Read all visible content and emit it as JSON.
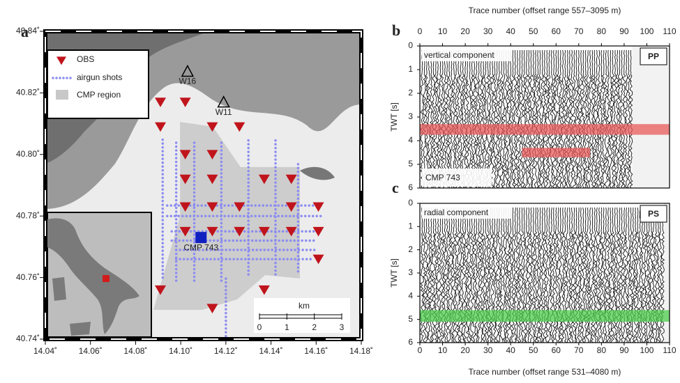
{
  "chart_data": [
    {
      "type": "map",
      "panel_label": "a",
      "xlim": [
        14.04,
        14.18
      ],
      "ylim": [
        40.74,
        40.84
      ],
      "xticks": [
        {
          "value": 14.04,
          "label": "14.04˚"
        },
        {
          "value": 14.06,
          "label": "14.06˚"
        },
        {
          "value": 14.08,
          "label": "14.08˚"
        },
        {
          "value": 14.1,
          "label": "14.10˚"
        },
        {
          "value": 14.12,
          "label": "14.12˚"
        },
        {
          "value": 14.14,
          "label": "14.14˚"
        },
        {
          "value": 14.16,
          "label": "14.16˚"
        },
        {
          "value": 14.18,
          "label": "14.18˚"
        }
      ],
      "yticks": [
        {
          "value": 40.74,
          "label": "40.74˚"
        },
        {
          "value": 40.76,
          "label": "40.76˚"
        },
        {
          "value": 40.78,
          "label": "40.78˚"
        },
        {
          "value": 40.8,
          "label": "40.80˚"
        },
        {
          "value": 40.82,
          "label": "40.82˚"
        },
        {
          "value": 40.84,
          "label": "40.84˚"
        }
      ],
      "cmp_region": {
        "name": "CMP region",
        "color": "#c8c8c8",
        "lon": [
          14.0997,
          14.1142,
          14.1265,
          14.1528,
          14.1528,
          14.1374,
          14.125,
          14.1095,
          14.0879,
          14.0997
        ],
        "lat": [
          40.8106,
          40.809,
          40.7959,
          40.7959,
          40.7597,
          40.7608,
          40.7529,
          40.7495,
          40.7495,
          40.78
        ]
      },
      "shots": {
        "name": "airgun shots",
        "color": "#8c8cf0",
        "tracks": [
          {
            "lon": [
              14.094,
              14.162
            ],
            "lat": [
              40.7834,
              40.7834
            ]
          },
          {
            "lon": [
              14.094,
              14.162
            ],
            "lat": [
              40.78,
              40.78
            ]
          },
          {
            "lon": [
              14.096,
              14.162
            ],
            "lat": [
              40.775,
              40.775
            ]
          },
          {
            "lon": [
              14.096,
              14.16
            ],
            "lat": [
              40.772,
              40.772
            ]
          },
          {
            "lon": [
              14.098,
              14.16
            ],
            "lat": [
              40.769,
              40.769
            ]
          },
          {
            "lon": [
              14.098,
              14.158
            ],
            "lat": [
              40.766,
              40.766
            ]
          },
          {
            "lon": [
              14.092,
              14.092
            ],
            "lat": [
              40.76,
              40.805
            ]
          },
          {
            "lon": [
              14.098,
              14.098
            ],
            "lat": [
              40.759,
              40.805
            ]
          },
          {
            "lon": [
              14.106,
              14.106
            ],
            "lat": [
              40.759,
              40.805
            ]
          },
          {
            "lon": [
              14.118,
              14.118
            ],
            "lat": [
              40.759,
              40.805
            ]
          },
          {
            "lon": [
              14.13,
              14.13
            ],
            "lat": [
              40.761,
              40.805
            ]
          },
          {
            "lon": [
              14.142,
              14.142
            ],
            "lat": [
              40.761,
              40.805
            ]
          },
          {
            "lon": [
              14.152,
              14.152
            ],
            "lat": [
              40.762,
              40.798
            ]
          },
          {
            "lon": [
              14.12,
              14.12
            ],
            "lat": [
              40.741,
              40.76
            ]
          }
        ]
      },
      "obs": {
        "name": "OBS",
        "color": "#c0141c",
        "lon": [
          14.091,
          14.102,
          14.091,
          14.114,
          14.126,
          14.102,
          14.114,
          14.102,
          14.114,
          14.137,
          14.149,
          14.102,
          14.114,
          14.126,
          14.149,
          14.161,
          14.102,
          14.114,
          14.126,
          14.137,
          14.149,
          14.161,
          14.161,
          14.091,
          14.114,
          14.137
        ],
        "lat": [
          40.817,
          40.817,
          40.809,
          40.809,
          40.809,
          40.8,
          40.8,
          40.792,
          40.792,
          40.792,
          40.792,
          40.783,
          40.783,
          40.783,
          40.783,
          40.783,
          40.775,
          40.775,
          40.775,
          40.775,
          40.775,
          40.775,
          40.766,
          40.756,
          40.75,
          40.756
        ]
      },
      "stations": [
        {
          "label": "W16",
          "lon": 14.103,
          "lat": 40.827
        },
        {
          "label": "W11",
          "lon": 14.119,
          "lat": 40.817
        }
      ],
      "cmp": {
        "label": "CMP 743",
        "lon": 14.109,
        "lat": 40.773,
        "color": "#1020c0"
      },
      "scalebar": {
        "label": "km",
        "ticks": [
          0,
          1,
          2,
          3
        ]
      }
    },
    {
      "type": "seismic",
      "panel_label": "b",
      "xlabel": "Trace number (offset range 557–3095 m)",
      "ylabel": "TWT [s]",
      "component": "vertical component",
      "wave": "PP",
      "annotation": "CMP 743",
      "xlim": [
        0,
        110
      ],
      "ylim": [
        6,
        0
      ],
      "xticks": [
        0,
        10,
        20,
        30,
        40,
        50,
        60,
        70,
        80,
        90,
        100,
        110
      ],
      "yticks": [
        0,
        1,
        2,
        3,
        4,
        5,
        6
      ],
      "trace_range": [
        1,
        93
      ],
      "bands": [
        {
          "x": [
            0,
            110
          ],
          "y": [
            3.3,
            3.75
          ],
          "color": "#e85a5a"
        },
        {
          "x": [
            45,
            75
          ],
          "y": [
            4.3,
            4.7
          ],
          "color": "#e85a5a"
        }
      ]
    },
    {
      "type": "seismic",
      "panel_label": "c",
      "xlabel": "Trace number (offset range 531–4080 m)",
      "ylabel": "TWT [s]",
      "component": "radial component",
      "wave": "PS",
      "xlim": [
        0,
        110
      ],
      "ylim": [
        6,
        0
      ],
      "xticks": [
        0,
        10,
        20,
        30,
        40,
        50,
        60,
        70,
        80,
        90,
        100,
        110
      ],
      "yticks": [
        0,
        1,
        2,
        3,
        4,
        5,
        6
      ],
      "trace_range": [
        1,
        107
      ],
      "bands": [
        {
          "x": [
            0,
            110
          ],
          "y": [
            4.6,
            5.1
          ],
          "color": "#4ccc4c"
        }
      ]
    }
  ]
}
